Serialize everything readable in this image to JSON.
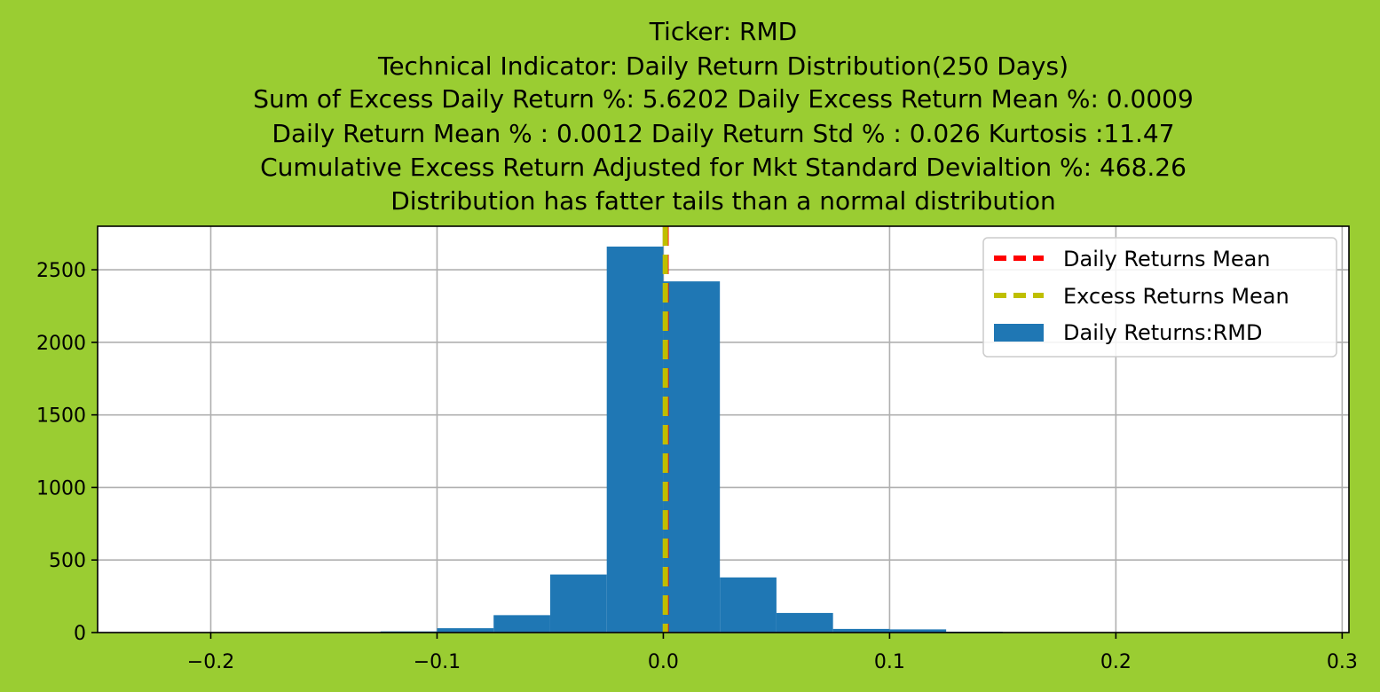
{
  "chart_data": {
    "type": "bar",
    "title_lines": [
      "Ticker: RMD",
      "Technical Indicator: Daily Return Distribution(250 Days)",
      "Sum of Excess Daily Return %: 5.6202   Daily Excess Return Mean %: 0.0009",
      "Daily Return Mean % : 0.0012    Daily Return Std % : 0.026  Kurtosis :11.47",
      "Cumulative Excess Return Adjusted for Mkt Standard Devialtion %: 468.26",
      "Distribution has fatter tails than a normal distribution"
    ],
    "xlabel": "",
    "ylabel": "",
    "xlim": [
      -0.25,
      0.303
    ],
    "ylim": [
      0,
      2800
    ],
    "grid": true,
    "legend_position": "top-right",
    "background_color": "#9acd32",
    "x_ticks": [
      -0.2,
      -0.1,
      0.0,
      0.1,
      0.2,
      0.3
    ],
    "x_tick_labels": [
      "−0.2",
      "−0.1",
      "0.0",
      "0.1",
      "0.2",
      "0.3"
    ],
    "y_ticks": [
      0,
      500,
      1000,
      1500,
      2000,
      2500
    ],
    "y_tick_labels": [
      "0",
      "500",
      "1000",
      "1500",
      "2000",
      "2500"
    ],
    "histogram": {
      "name": "Daily Returns:RMD",
      "color": "#1f77b4",
      "bin_edges": [
        -0.2,
        -0.175,
        -0.15,
        -0.125,
        -0.1,
        -0.075,
        -0.05,
        -0.025,
        0.0,
        0.025,
        0.05,
        0.075,
        0.1,
        0.125,
        0.15,
        0.175,
        0.2,
        0.225,
        0.25,
        0.275,
        0.3
      ],
      "counts": [
        2,
        0,
        1,
        8,
        30,
        120,
        400,
        2660,
        2420,
        380,
        135,
        25,
        22,
        6,
        2,
        0,
        0,
        0,
        0,
        1
      ]
    },
    "vlines": [
      {
        "name": "Daily Returns Mean",
        "x": 0.0012,
        "color": "#ff0000"
      },
      {
        "name": "Excess Returns Mean",
        "x": 0.0009,
        "color": "#bfbf00"
      }
    ]
  }
}
